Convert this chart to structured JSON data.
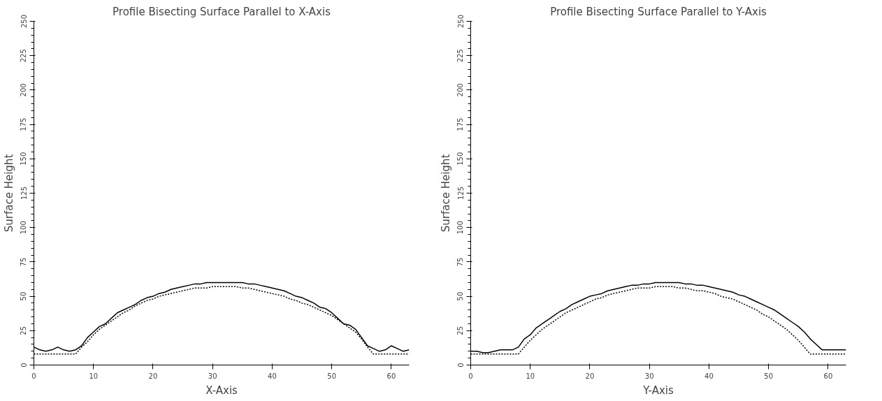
{
  "chart_data": [
    {
      "type": "line",
      "title": "Profile Bisecting Surface Parallel to X-Axis",
      "xlabel": "X-Axis",
      "ylabel": "Surface Height",
      "x": [
        0,
        1,
        2,
        3,
        4,
        5,
        6,
        7,
        8,
        9,
        10,
        11,
        12,
        13,
        14,
        15,
        16,
        17,
        18,
        19,
        20,
        21,
        22,
        23,
        24,
        25,
        26,
        27,
        28,
        29,
        30,
        31,
        32,
        33,
        34,
        35,
        36,
        37,
        38,
        39,
        40,
        41,
        42,
        43,
        44,
        45,
        46,
        47,
        48,
        49,
        50,
        51,
        52,
        53,
        54,
        55,
        56,
        57,
        58,
        59,
        60,
        61,
        62,
        63
      ],
      "xlim": [
        0,
        63
      ],
      "ylim": [
        0,
        250
      ],
      "xticks": [
        0,
        10,
        20,
        30,
        40,
        50,
        60
      ],
      "yticks": [
        0,
        25,
        50,
        75,
        100,
        125,
        150,
        175,
        200,
        225,
        250
      ],
      "series": [
        {
          "color": "#000000",
          "line_style": "solid",
          "values": [
            13,
            11,
            10,
            11,
            13,
            11,
            10,
            11,
            14,
            20,
            24,
            28,
            30,
            34,
            38,
            40,
            42,
            44,
            47,
            49,
            50,
            52,
            53,
            55,
            56,
            57,
            58,
            59,
            59,
            60,
            60,
            60,
            60,
            60,
            60,
            60,
            59,
            59,
            58,
            57,
            56,
            55,
            54,
            52,
            50,
            49,
            47,
            45,
            42,
            41,
            38,
            34,
            30,
            29,
            26,
            20,
            14,
            12,
            10,
            11,
            14,
            12,
            10,
            11
          ]
        },
        {
          "color": "#000000",
          "line_style": "dotted",
          "values": [
            8,
            8,
            8,
            8,
            8,
            8,
            8,
            8,
            13,
            17,
            22,
            26,
            29,
            32,
            35,
            38,
            40,
            43,
            45,
            47,
            48,
            50,
            51,
            52,
            53,
            54,
            55,
            56,
            56,
            56,
            57,
            57,
            57,
            57,
            57,
            56,
            56,
            55,
            54,
            53,
            52,
            51,
            50,
            48,
            47,
            45,
            44,
            42,
            40,
            38,
            36,
            33,
            30,
            27,
            24,
            19,
            13,
            8,
            8,
            8,
            8,
            8,
            8,
            8
          ]
        }
      ]
    },
    {
      "type": "line",
      "title": "Profile Bisecting Surface Parallel to Y-Axis",
      "xlabel": "Y-Axis",
      "ylabel": "Surface Height",
      "x": [
        0,
        1,
        2,
        3,
        4,
        5,
        6,
        7,
        8,
        9,
        10,
        11,
        12,
        13,
        14,
        15,
        16,
        17,
        18,
        19,
        20,
        21,
        22,
        23,
        24,
        25,
        26,
        27,
        28,
        29,
        30,
        31,
        32,
        33,
        34,
        35,
        36,
        37,
        38,
        39,
        40,
        41,
        42,
        43,
        44,
        45,
        46,
        47,
        48,
        49,
        50,
        51,
        52,
        53,
        54,
        55,
        56,
        57,
        58,
        59,
        60,
        61,
        62,
        63
      ],
      "xlim": [
        0,
        63
      ],
      "ylim": [
        0,
        250
      ],
      "xticks": [
        0,
        10,
        20,
        30,
        40,
        50,
        60
      ],
      "yticks": [
        0,
        25,
        50,
        75,
        100,
        125,
        150,
        175,
        200,
        225,
        250
      ],
      "series": [
        {
          "color": "#000000",
          "line_style": "solid",
          "values": [
            10,
            10,
            9,
            9,
            10,
            11,
            11,
            11,
            13,
            19,
            22,
            27,
            30,
            33,
            36,
            39,
            41,
            44,
            46,
            48,
            50,
            51,
            52,
            54,
            55,
            56,
            57,
            58,
            58,
            59,
            59,
            60,
            60,
            60,
            60,
            60,
            59,
            59,
            58,
            58,
            57,
            56,
            55,
            54,
            53,
            51,
            50,
            48,
            46,
            44,
            42,
            40,
            37,
            34,
            31,
            28,
            24,
            19,
            15,
            11,
            11,
            11,
            11,
            11
          ]
        },
        {
          "color": "#000000",
          "line_style": "dotted",
          "values": [
            8,
            8,
            8,
            8,
            8,
            8,
            8,
            8,
            8,
            13,
            18,
            22,
            26,
            29,
            32,
            35,
            38,
            40,
            42,
            44,
            46,
            48,
            49,
            51,
            52,
            53,
            54,
            55,
            56,
            56,
            56,
            57,
            57,
            57,
            57,
            56,
            56,
            55,
            54,
            54,
            53,
            52,
            50,
            49,
            48,
            46,
            44,
            42,
            40,
            37,
            35,
            32,
            29,
            26,
            22,
            18,
            13,
            8,
            8,
            8,
            8,
            8,
            8,
            8
          ]
        }
      ]
    }
  ]
}
